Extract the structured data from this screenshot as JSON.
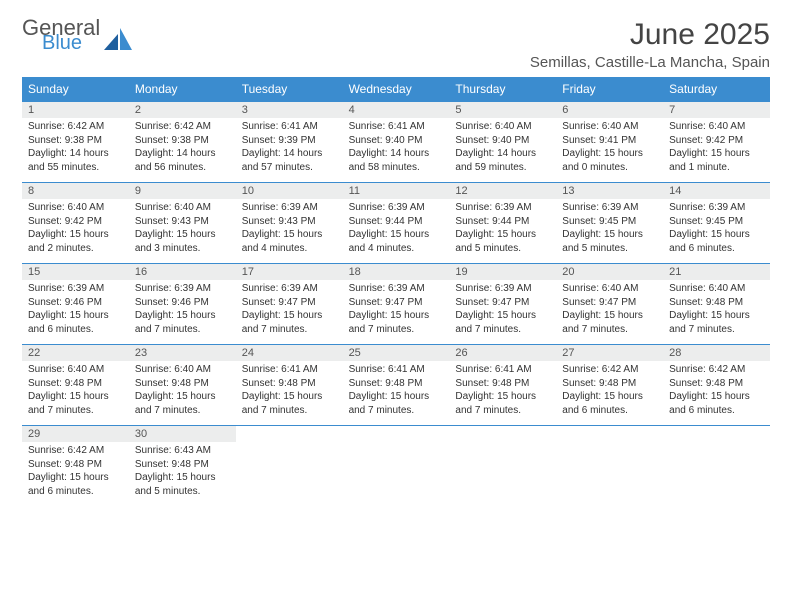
{
  "brand": {
    "line1": "General",
    "line2": "Blue"
  },
  "title": "June 2025",
  "location": "Semillas, Castille-La Mancha, Spain",
  "colors": {
    "header_bg": "#3b8ccf",
    "header_text": "#ffffff",
    "daynum_bg": "#eceded",
    "week_border": "#3b8ccf",
    "page_bg": "#ffffff",
    "title_color": "#444444",
    "body_text": "#333333"
  },
  "day_names": [
    "Sunday",
    "Monday",
    "Tuesday",
    "Wednesday",
    "Thursday",
    "Friday",
    "Saturday"
  ],
  "weeks": [
    [
      {
        "num": "1",
        "sunrise": "Sunrise: 6:42 AM",
        "sunset": "Sunset: 9:38 PM",
        "daylight": "Daylight: 14 hours and 55 minutes."
      },
      {
        "num": "2",
        "sunrise": "Sunrise: 6:42 AM",
        "sunset": "Sunset: 9:38 PM",
        "daylight": "Daylight: 14 hours and 56 minutes."
      },
      {
        "num": "3",
        "sunrise": "Sunrise: 6:41 AM",
        "sunset": "Sunset: 9:39 PM",
        "daylight": "Daylight: 14 hours and 57 minutes."
      },
      {
        "num": "4",
        "sunrise": "Sunrise: 6:41 AM",
        "sunset": "Sunset: 9:40 PM",
        "daylight": "Daylight: 14 hours and 58 minutes."
      },
      {
        "num": "5",
        "sunrise": "Sunrise: 6:40 AM",
        "sunset": "Sunset: 9:40 PM",
        "daylight": "Daylight: 14 hours and 59 minutes."
      },
      {
        "num": "6",
        "sunrise": "Sunrise: 6:40 AM",
        "sunset": "Sunset: 9:41 PM",
        "daylight": "Daylight: 15 hours and 0 minutes."
      },
      {
        "num": "7",
        "sunrise": "Sunrise: 6:40 AM",
        "sunset": "Sunset: 9:42 PM",
        "daylight": "Daylight: 15 hours and 1 minute."
      }
    ],
    [
      {
        "num": "8",
        "sunrise": "Sunrise: 6:40 AM",
        "sunset": "Sunset: 9:42 PM",
        "daylight": "Daylight: 15 hours and 2 minutes."
      },
      {
        "num": "9",
        "sunrise": "Sunrise: 6:40 AM",
        "sunset": "Sunset: 9:43 PM",
        "daylight": "Daylight: 15 hours and 3 minutes."
      },
      {
        "num": "10",
        "sunrise": "Sunrise: 6:39 AM",
        "sunset": "Sunset: 9:43 PM",
        "daylight": "Daylight: 15 hours and 4 minutes."
      },
      {
        "num": "11",
        "sunrise": "Sunrise: 6:39 AM",
        "sunset": "Sunset: 9:44 PM",
        "daylight": "Daylight: 15 hours and 4 minutes."
      },
      {
        "num": "12",
        "sunrise": "Sunrise: 6:39 AM",
        "sunset": "Sunset: 9:44 PM",
        "daylight": "Daylight: 15 hours and 5 minutes."
      },
      {
        "num": "13",
        "sunrise": "Sunrise: 6:39 AM",
        "sunset": "Sunset: 9:45 PM",
        "daylight": "Daylight: 15 hours and 5 minutes."
      },
      {
        "num": "14",
        "sunrise": "Sunrise: 6:39 AM",
        "sunset": "Sunset: 9:45 PM",
        "daylight": "Daylight: 15 hours and 6 minutes."
      }
    ],
    [
      {
        "num": "15",
        "sunrise": "Sunrise: 6:39 AM",
        "sunset": "Sunset: 9:46 PM",
        "daylight": "Daylight: 15 hours and 6 minutes."
      },
      {
        "num": "16",
        "sunrise": "Sunrise: 6:39 AM",
        "sunset": "Sunset: 9:46 PM",
        "daylight": "Daylight: 15 hours and 7 minutes."
      },
      {
        "num": "17",
        "sunrise": "Sunrise: 6:39 AM",
        "sunset": "Sunset: 9:47 PM",
        "daylight": "Daylight: 15 hours and 7 minutes."
      },
      {
        "num": "18",
        "sunrise": "Sunrise: 6:39 AM",
        "sunset": "Sunset: 9:47 PM",
        "daylight": "Daylight: 15 hours and 7 minutes."
      },
      {
        "num": "19",
        "sunrise": "Sunrise: 6:39 AM",
        "sunset": "Sunset: 9:47 PM",
        "daylight": "Daylight: 15 hours and 7 minutes."
      },
      {
        "num": "20",
        "sunrise": "Sunrise: 6:40 AM",
        "sunset": "Sunset: 9:47 PM",
        "daylight": "Daylight: 15 hours and 7 minutes."
      },
      {
        "num": "21",
        "sunrise": "Sunrise: 6:40 AM",
        "sunset": "Sunset: 9:48 PM",
        "daylight": "Daylight: 15 hours and 7 minutes."
      }
    ],
    [
      {
        "num": "22",
        "sunrise": "Sunrise: 6:40 AM",
        "sunset": "Sunset: 9:48 PM",
        "daylight": "Daylight: 15 hours and 7 minutes."
      },
      {
        "num": "23",
        "sunrise": "Sunrise: 6:40 AM",
        "sunset": "Sunset: 9:48 PM",
        "daylight": "Daylight: 15 hours and 7 minutes."
      },
      {
        "num": "24",
        "sunrise": "Sunrise: 6:41 AM",
        "sunset": "Sunset: 9:48 PM",
        "daylight": "Daylight: 15 hours and 7 minutes."
      },
      {
        "num": "25",
        "sunrise": "Sunrise: 6:41 AM",
        "sunset": "Sunset: 9:48 PM",
        "daylight": "Daylight: 15 hours and 7 minutes."
      },
      {
        "num": "26",
        "sunrise": "Sunrise: 6:41 AM",
        "sunset": "Sunset: 9:48 PM",
        "daylight": "Daylight: 15 hours and 7 minutes."
      },
      {
        "num": "27",
        "sunrise": "Sunrise: 6:42 AM",
        "sunset": "Sunset: 9:48 PM",
        "daylight": "Daylight: 15 hours and 6 minutes."
      },
      {
        "num": "28",
        "sunrise": "Sunrise: 6:42 AM",
        "sunset": "Sunset: 9:48 PM",
        "daylight": "Daylight: 15 hours and 6 minutes."
      }
    ],
    [
      {
        "num": "29",
        "sunrise": "Sunrise: 6:42 AM",
        "sunset": "Sunset: 9:48 PM",
        "daylight": "Daylight: 15 hours and 6 minutes."
      },
      {
        "num": "30",
        "sunrise": "Sunrise: 6:43 AM",
        "sunset": "Sunset: 9:48 PM",
        "daylight": "Daylight: 15 hours and 5 minutes."
      },
      null,
      null,
      null,
      null,
      null
    ]
  ]
}
